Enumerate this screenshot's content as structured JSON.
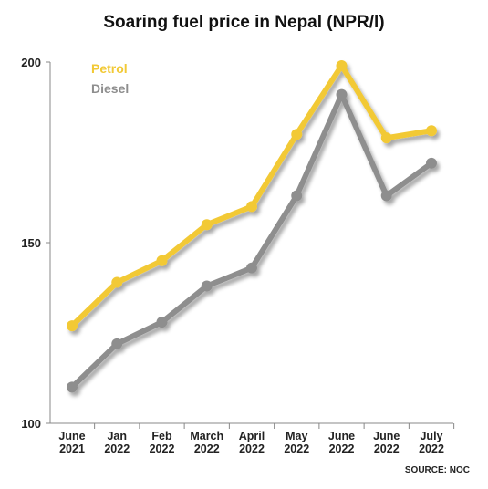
{
  "chart_data": {
    "type": "line",
    "title": "Soaring fuel price in Nepal (NPR/l)",
    "xlabel": "",
    "ylabel": "",
    "categories": [
      [
        "June",
        "2021"
      ],
      [
        "Jan",
        "2022"
      ],
      [
        "Feb",
        "2022"
      ],
      [
        "March",
        "2022"
      ],
      [
        "April",
        "2022"
      ],
      [
        "May",
        "2022"
      ],
      [
        "June",
        "2022"
      ],
      [
        "June",
        "2022"
      ],
      [
        "July",
        "2022"
      ]
    ],
    "yticks": [
      100,
      150,
      200
    ],
    "ylim": [
      100,
      200
    ],
    "grid": false,
    "legend_position": "top-left",
    "series": [
      {
        "name": "Petrol",
        "color": "#F2C935",
        "values": [
          127,
          139,
          145,
          155,
          160,
          180,
          199,
          179,
          181
        ]
      },
      {
        "name": "Diesel",
        "color": "#8E8E8E",
        "values": [
          110,
          122,
          128,
          138,
          143,
          163,
          191,
          163,
          172
        ]
      }
    ],
    "source": "SOURCE: NOC"
  }
}
